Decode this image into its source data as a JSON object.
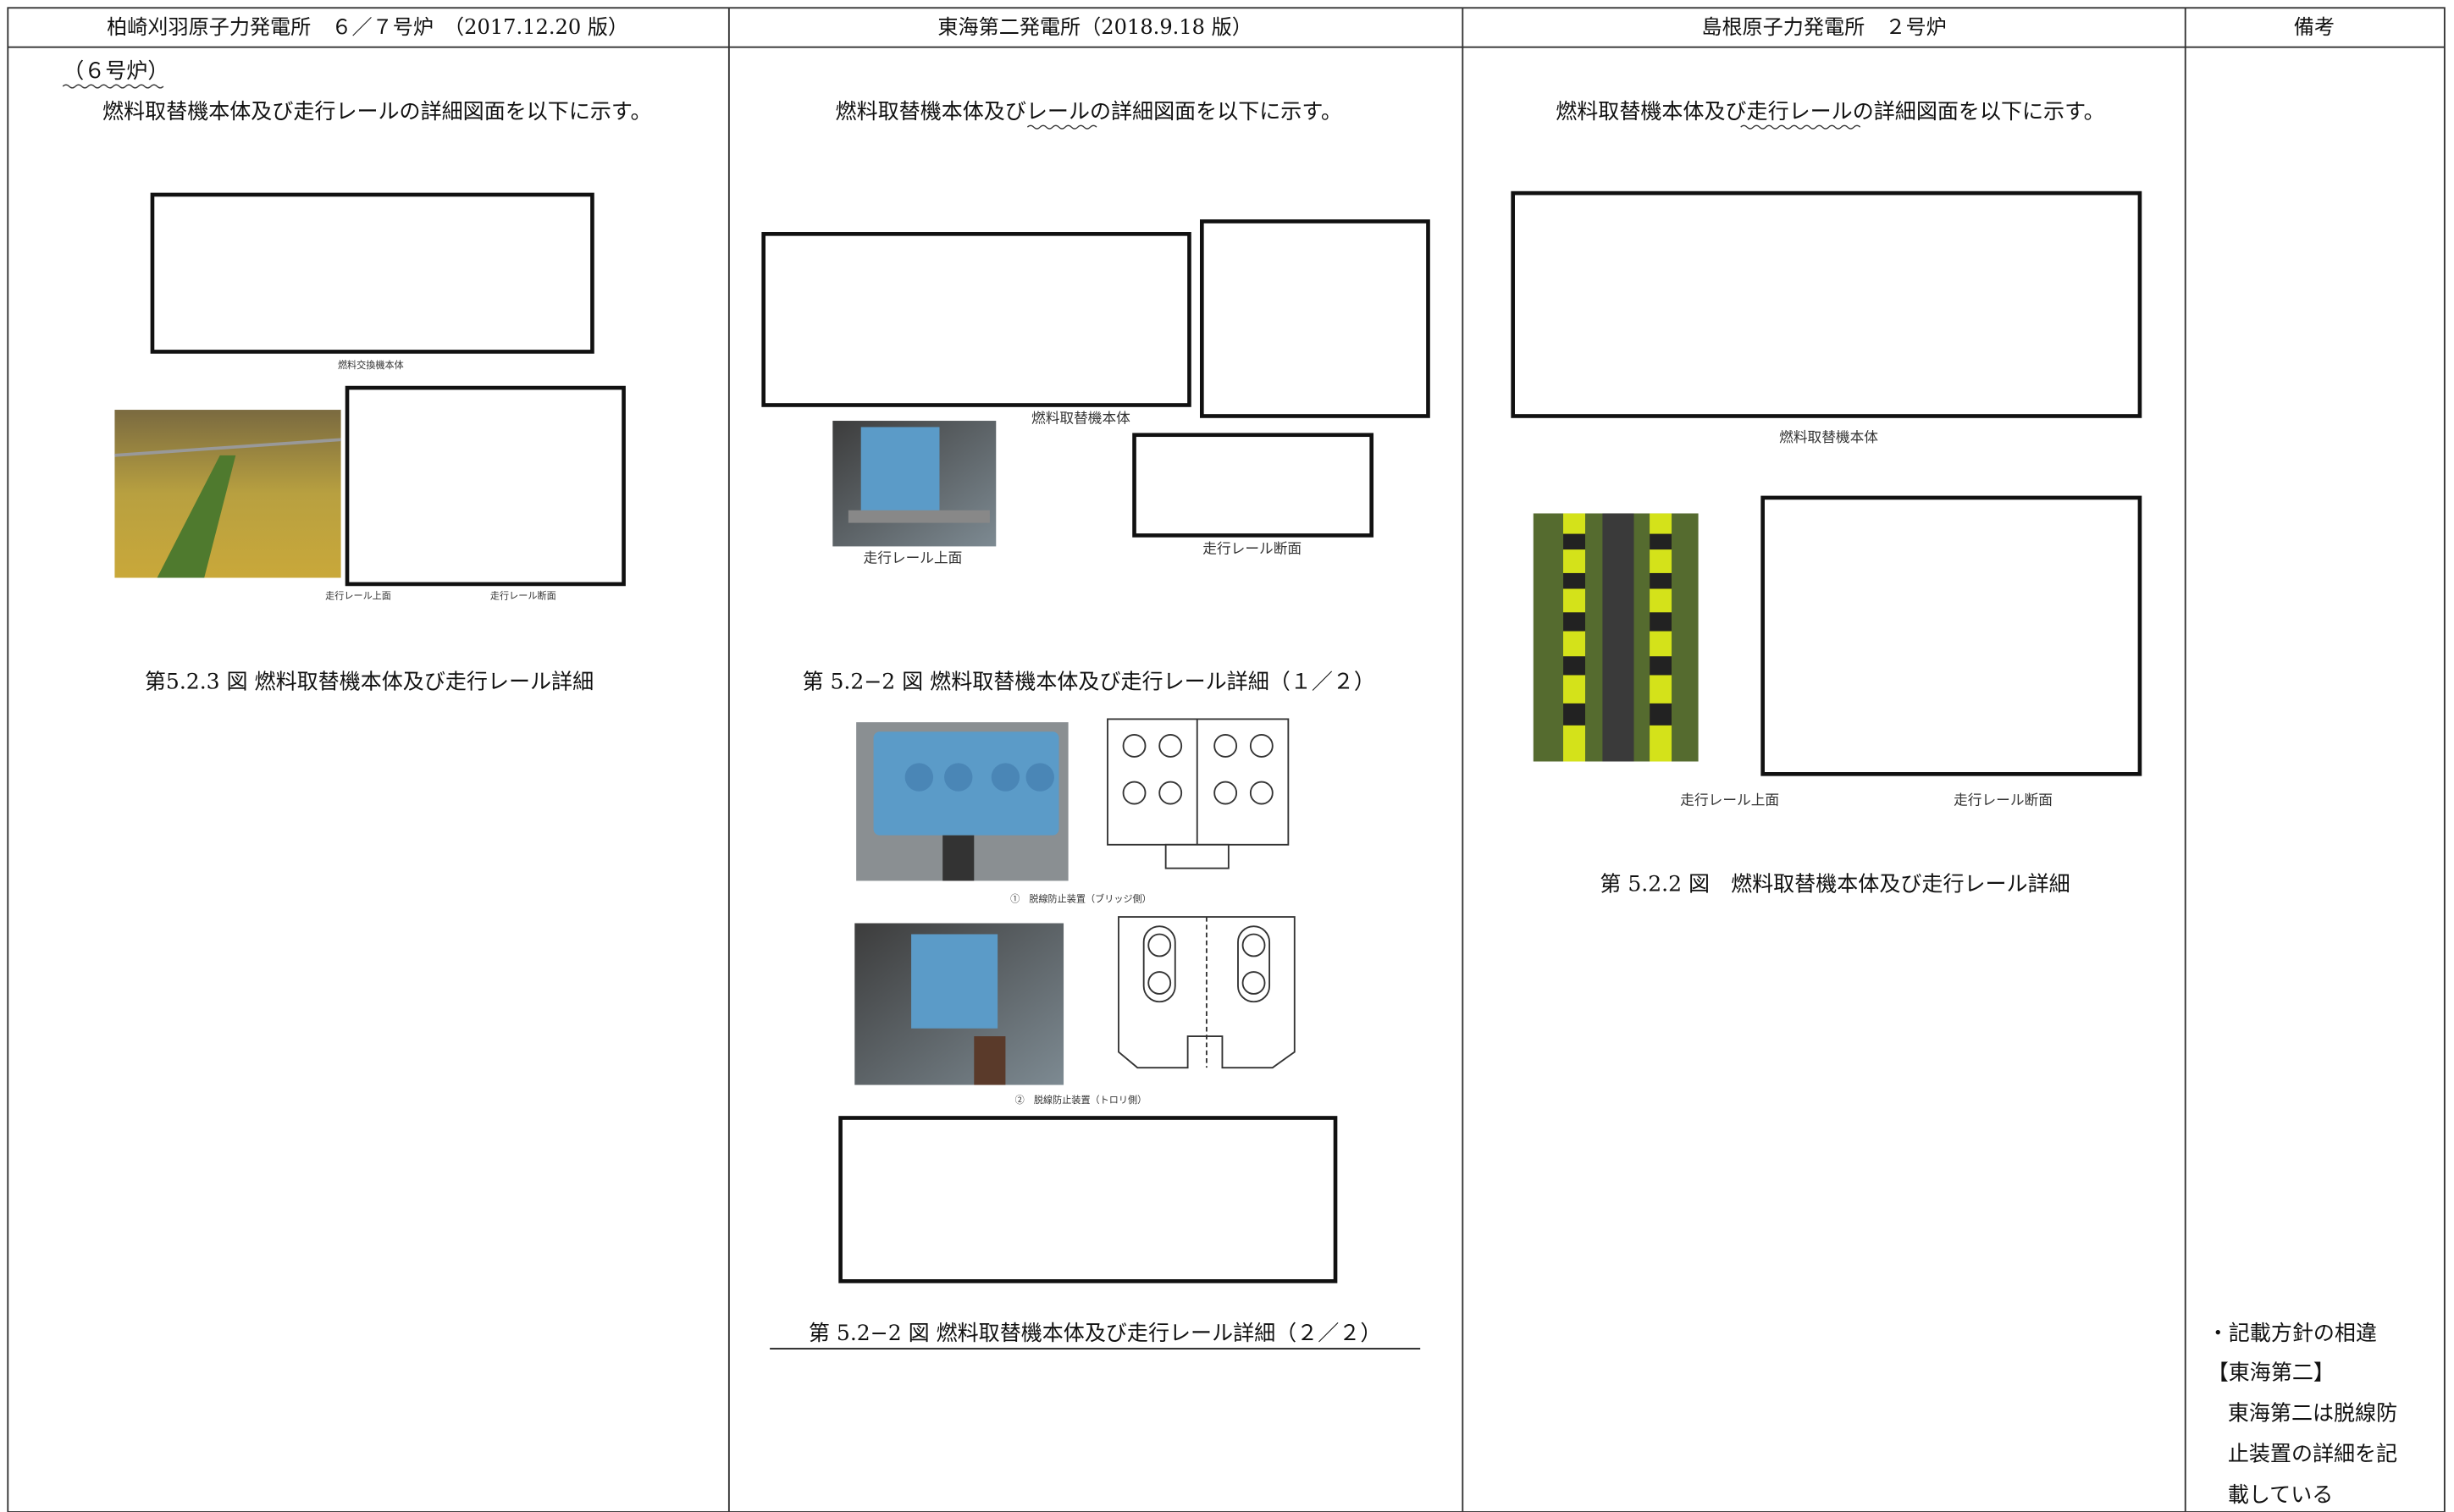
{
  "header": [
    "柏崎刈羽原子力発電所　６／７号炉　（2017.12.20 版）",
    "東海第二発電所（2018.9.18 版）",
    "島根原子力発電所　２号炉",
    "備考"
  ],
  "columns": [
    {
      "note": "（６号炉）",
      "intro": "燃料取替機本体及び走行レールの詳細図面を以下に示す。",
      "labels": [
        "燃料交換機本体",
        "走行レール上面",
        "走行レール断面"
      ],
      "caption": "第5.2.3 図 燃料取替機本体及び走行レール詳細"
    },
    {
      "intro": "燃料取替機本体及びレールの詳細図面を以下に示す。",
      "labels": [
        "燃料取替機本体",
        "走行レール上面",
        "走行レール断面",
        "①　脱線防止装置（ブリッジ側）",
        "②　脱線防止装置（トロリ側）"
      ],
      "caption": "第 5.2−2 図 燃料取替機本体及び走行レール詳細（１／２）",
      "caption2": "第 5.2−2 図 燃料取替機本体及び走行レール詳細（２／２）"
    },
    {
      "intro": "燃料取替機本体及び走行レールの詳細図面を以下に示す。",
      "labels": [
        "燃料取替機本体",
        "走行レール上面",
        "走行レール断面"
      ],
      "caption": "第 5.2.2 図　燃料取替機本体及び走行レール詳細"
    },
    {
      "notes": [
        "・記載方針の相違",
        "【東海第二】",
        "東海第二は脱線防",
        "止装置の詳細を記",
        "載している"
      ]
    }
  ]
}
